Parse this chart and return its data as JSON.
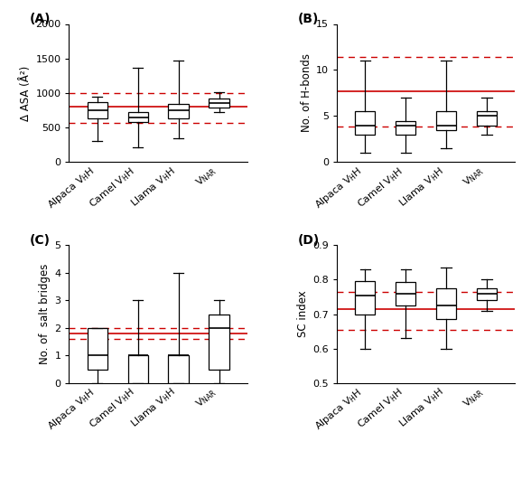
{
  "panel_A": {
    "title": "(A)",
    "ylabel": "Δ ASA (Å²)",
    "ylim": [
      0,
      2000
    ],
    "yticks": [
      0,
      500,
      1000,
      1500,
      2000
    ],
    "red_line": 800,
    "red_dashed_low": 570,
    "red_dashed_high": 1000,
    "boxes": [
      {
        "q1": 630,
        "median": 750,
        "q3": 870,
        "whislo": 310,
        "whishi": 950
      },
      {
        "q1": 580,
        "median": 645,
        "q3": 720,
        "whislo": 220,
        "whishi": 1360
      },
      {
        "q1": 630,
        "median": 755,
        "q3": 840,
        "whislo": 350,
        "whishi": 1470
      },
      {
        "q1": 790,
        "median": 850,
        "q3": 920,
        "whislo": 730,
        "whishi": 1010
      }
    ]
  },
  "panel_B": {
    "title": "(B)",
    "ylabel": "No. of H-bonds",
    "ylim": [
      0,
      15
    ],
    "yticks": [
      0,
      5,
      10,
      15
    ],
    "red_line": 7.7,
    "red_dashed_low": 3.9,
    "red_dashed_high": 11.4,
    "boxes": [
      {
        "q1": 3.0,
        "median": 4.0,
        "q3": 5.5,
        "whislo": 1.0,
        "whishi": 11.0
      },
      {
        "q1": 3.0,
        "median": 4.0,
        "q3": 4.5,
        "whislo": 1.0,
        "whishi": 7.0
      },
      {
        "q1": 3.5,
        "median": 4.0,
        "q3": 5.5,
        "whislo": 1.5,
        "whishi": 11.0
      },
      {
        "q1": 4.0,
        "median": 5.0,
        "q3": 5.5,
        "whislo": 3.0,
        "whishi": 7.0
      }
    ]
  },
  "panel_C": {
    "title": "(C)",
    "ylabel": "No. of  salt bridges",
    "ylim": [
      0,
      5
    ],
    "yticks": [
      0,
      1,
      2,
      3,
      4,
      5
    ],
    "red_line": 1.8,
    "red_dashed_low": 1.6,
    "red_dashed_high": 2.0,
    "boxes": [
      {
        "q1": 0.5,
        "median": 1.0,
        "q3": 2.0,
        "whislo": 0.0,
        "whishi": 2.0
      },
      {
        "q1": 0.0,
        "median": 1.0,
        "q3": 1.0,
        "whislo": 0.0,
        "whishi": 3.0
      },
      {
        "q1": 0.0,
        "median": 1.0,
        "q3": 1.0,
        "whislo": 0.0,
        "whishi": 4.0
      },
      {
        "q1": 0.5,
        "median": 2.0,
        "q3": 2.5,
        "whislo": 0.0,
        "whishi": 3.0
      }
    ]
  },
  "panel_D": {
    "title": "(D)",
    "ylabel": "SC index",
    "ylim": [
      0.5,
      0.9
    ],
    "yticks": [
      0.5,
      0.6,
      0.7,
      0.8,
      0.9
    ],
    "red_line": 0.715,
    "red_dashed_low": 0.655,
    "red_dashed_high": 0.765,
    "boxes": [
      {
        "q1": 0.7,
        "median": 0.755,
        "q3": 0.795,
        "whislo": 0.6,
        "whishi": 0.83
      },
      {
        "q1": 0.725,
        "median": 0.758,
        "q3": 0.793,
        "whislo": 0.63,
        "whishi": 0.83
      },
      {
        "q1": 0.685,
        "median": 0.725,
        "q3": 0.775,
        "whislo": 0.6,
        "whishi": 0.835
      },
      {
        "q1": 0.74,
        "median": 0.758,
        "q3": 0.775,
        "whislo": 0.71,
        "whishi": 0.8
      }
    ]
  },
  "red_line_color": "#cc0000",
  "red_dashed_color": "#cc0000",
  "label_fontsize": 8.5,
  "tick_fontsize": 8,
  "title_fontsize": 10
}
